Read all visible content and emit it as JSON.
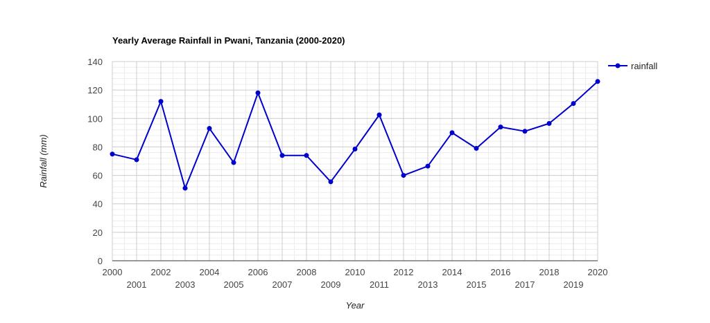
{
  "chart_data": {
    "type": "line",
    "title": "Yearly Average Rainfall in Pwani, Tanzania (2000-2020)",
    "xlabel": "Year",
    "ylabel": "Rainfall (mm)",
    "xlim": [
      2000,
      2020
    ],
    "ylim": [
      0,
      140
    ],
    "x_ticks": [
      2000,
      2001,
      2002,
      2003,
      2004,
      2005,
      2006,
      2007,
      2008,
      2009,
      2010,
      2011,
      2012,
      2013,
      2014,
      2015,
      2016,
      2017,
      2018,
      2019,
      2020
    ],
    "y_ticks": [
      0,
      20,
      40,
      60,
      80,
      100,
      120,
      140
    ],
    "grid": true,
    "legend_position": "right",
    "series": [
      {
        "name": "rainfall",
        "color": "#0000cc",
        "x": [
          2000,
          2001,
          2002,
          2003,
          2004,
          2005,
          2006,
          2007,
          2008,
          2009,
          2010,
          2011,
          2012,
          2013,
          2014,
          2015,
          2016,
          2017,
          2018,
          2019,
          2020
        ],
        "values": [
          75,
          71,
          112,
          51,
          93,
          69,
          118,
          74,
          74,
          55.5,
          78.5,
          102.5,
          60,
          66.5,
          90,
          79,
          94,
          91,
          96.5,
          110.5,
          126
        ]
      }
    ]
  }
}
